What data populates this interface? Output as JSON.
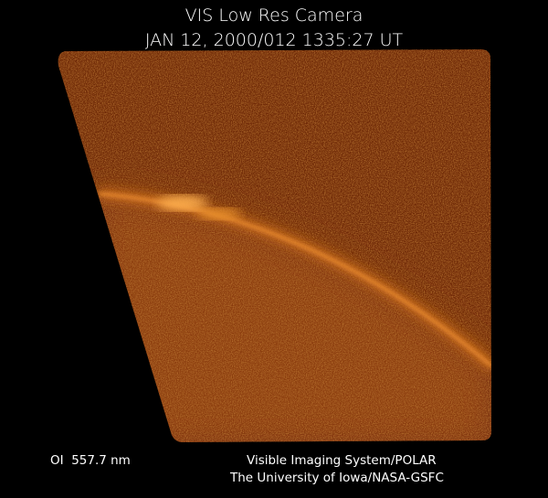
{
  "header": {
    "title": "VIS Low Res Camera",
    "timestamp": "JAN 12, 2000/012 1335:27 UT"
  },
  "footer": {
    "filter": "OI  557.7 nm",
    "instrument": "Visible Imaging System/POLAR",
    "institution": "The University of Iowa/NASA-GSFC"
  }
}
